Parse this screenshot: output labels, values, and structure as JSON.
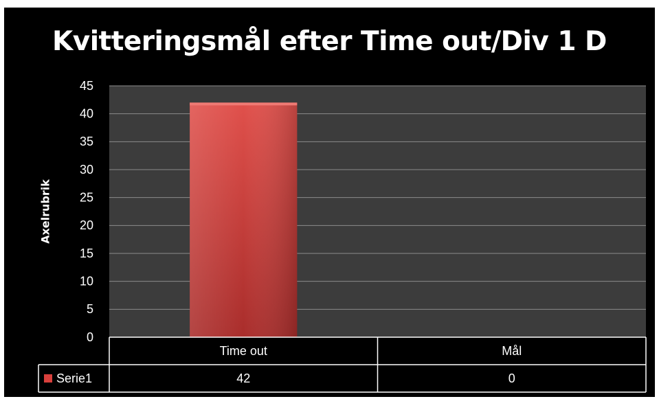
{
  "chart_data": {
    "type": "bar",
    "title": "Kvitteringsmål efter Time out/Div 1 D",
    "ylabel": "Axelrubrik",
    "xlabel": "",
    "categories": [
      "Time out",
      "Mål"
    ],
    "series": [
      {
        "name": "Serie1",
        "values": [
          42,
          0
        ]
      }
    ],
    "ylim": [
      0,
      45
    ],
    "ytick_step": 5,
    "grid": true,
    "legend": "data-table",
    "data_table": true,
    "colors": {
      "background": "#000000",
      "plot_area": "#3c3c3c",
      "gridline": "#8c8c8c",
      "bar": "#d9403c",
      "text": "#ffffff"
    }
  }
}
